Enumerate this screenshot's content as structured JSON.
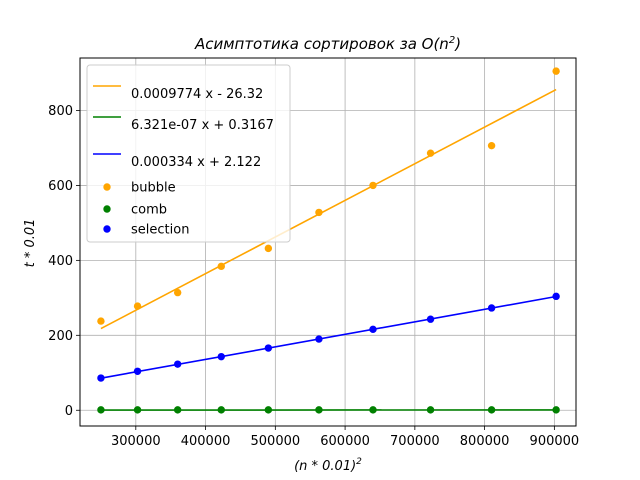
{
  "chart_data": {
    "type": "scatter",
    "title": {
      "main": "Асимптотика сортировок за O(n",
      "sup": "2",
      "end": ")"
    },
    "xlabel": {
      "main": "(n * 0.01)",
      "sup": "2"
    },
    "ylabel": "t * 0.01",
    "xlim": [
      220000,
      931000
    ],
    "ylim": [
      -42,
      940
    ],
    "xticks": [
      300000,
      400000,
      500000,
      600000,
      700000,
      800000,
      900000
    ],
    "yticks": [
      0,
      200,
      400,
      600,
      800
    ],
    "grid": true,
    "legend_position": "top-left",
    "x": [
      250000,
      302500,
      360000,
      422500,
      490000,
      562500,
      640000,
      722500,
      810000,
      902500
    ],
    "series": [
      {
        "name": "bubble",
        "color": "#ffa500",
        "values": [
          238,
          278,
          314,
          384,
          432,
          528,
          600,
          686,
          706,
          905
        ],
        "fit": {
          "label": "0.0009774 x - 26.32",
          "slope": 0.0009774,
          "intercept": -26.32
        }
      },
      {
        "name": "comb",
        "color": "#008000",
        "values": [
          1,
          1,
          1,
          1,
          1,
          1,
          1,
          1,
          1,
          1
        ],
        "fit": {
          "label": "6.321e-07 x + 0.3167",
          "slope": 6.321e-07,
          "intercept": 0.3167
        }
      },
      {
        "name": "selection",
        "color": "#0000ff",
        "values": [
          86,
          104,
          123,
          143,
          166,
          190,
          216,
          243,
          273,
          304
        ],
        "fit": {
          "label": "0.000334 x + 2.122",
          "slope": 0.000334,
          "intercept": 2.122
        }
      }
    ]
  }
}
